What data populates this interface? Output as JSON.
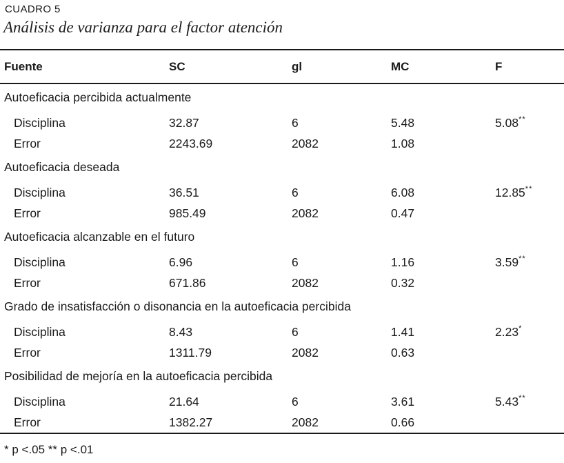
{
  "page": {
    "label": "CUADRO 5",
    "title": "Análisis de varianza para el factor atención"
  },
  "table": {
    "columns": [
      "Fuente",
      "SC",
      "gl",
      "MC",
      "F"
    ],
    "sections": [
      {
        "header": "Autoeficacia percibida actualmente",
        "rows": [
          {
            "fuente": "Disciplina",
            "sc": "32.87",
            "gl": "6",
            "mc": "5.48",
            "f": "5.08",
            "f_sig": "**"
          },
          {
            "fuente": "Error",
            "sc": "2243.69",
            "gl": "2082",
            "mc": "1.08",
            "f": "",
            "f_sig": ""
          }
        ]
      },
      {
        "header": "Autoeficacia deseada",
        "rows": [
          {
            "fuente": "Disciplina",
            "sc": "36.51",
            "gl": "6",
            "mc": "6.08",
            "f": "12.85",
            "f_sig": "**"
          },
          {
            "fuente": "Error",
            "sc": "985.49",
            "gl": "2082",
            "mc": "0.47",
            "f": "",
            "f_sig": ""
          }
        ]
      },
      {
        "header": "Autoeficacia alcanzable en el futuro",
        "rows": [
          {
            "fuente": "Disciplina",
            "sc": "6.96",
            "gl": "6",
            "mc": "1.16",
            "f": "3.59",
            "f_sig": "**"
          },
          {
            "fuente": "Error",
            "sc": "671.86",
            "gl": "2082",
            "mc": "0.32",
            "f": "",
            "f_sig": ""
          }
        ]
      },
      {
        "header": "Grado de insatisfacción o disonancia en la autoeficacia percibida",
        "rows": [
          {
            "fuente": "Disciplina",
            "sc": "8.43",
            "gl": "6",
            "mc": "1.41",
            "f": "2.23",
            "f_sig": "*"
          },
          {
            "fuente": "Error",
            "sc": "1311.79",
            "gl": "2082",
            "mc": "0.63",
            "f": "",
            "f_sig": ""
          }
        ]
      },
      {
        "header": "Posibilidad de mejoría en la autoeficacia percibida",
        "rows": [
          {
            "fuente": "Disciplina",
            "sc": "21.64",
            "gl": "6",
            "mc": "3.61",
            "f": "5.43",
            "f_sig": "**"
          },
          {
            "fuente": "Error",
            "sc": "1382.27",
            "gl": "2082",
            "mc": "0.66",
            "f": "",
            "f_sig": ""
          }
        ]
      }
    ],
    "footnote": "* p <.05 ** p <.01"
  }
}
